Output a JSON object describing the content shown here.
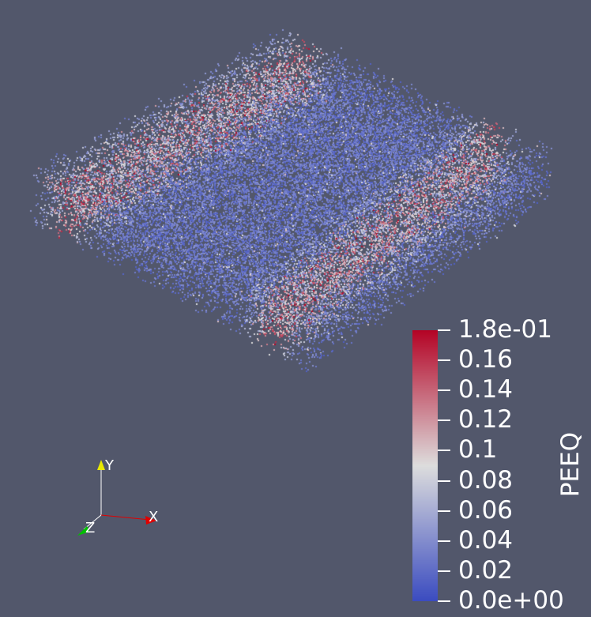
{
  "colorbar": {
    "title": "PEEQ",
    "ticks": [
      {
        "label": "1.8e-01",
        "value": 0.18
      },
      {
        "label": "0.16",
        "value": 0.16
      },
      {
        "label": "0.14",
        "value": 0.14
      },
      {
        "label": "0.12",
        "value": 0.12
      },
      {
        "label": "0.1",
        "value": 0.1
      },
      {
        "label": "0.08",
        "value": 0.08
      },
      {
        "label": "0.06",
        "value": 0.06
      },
      {
        "label": "0.04",
        "value": 0.04
      },
      {
        "label": "0.02",
        "value": 0.02
      },
      {
        "label": "0.0e+00",
        "value": 0.0
      }
    ],
    "range": [
      0.0,
      0.18
    ],
    "colors": {
      "low": "#3b4cc0",
      "mid": "#dddddd",
      "high": "#b40426"
    }
  },
  "orientation_axes": {
    "x_label": "X",
    "y_label": "Y",
    "z_label": "Z",
    "x_color": "#e00000",
    "y_color": "#e8e800",
    "z_color": "#00c000"
  },
  "background": "#52576b"
}
